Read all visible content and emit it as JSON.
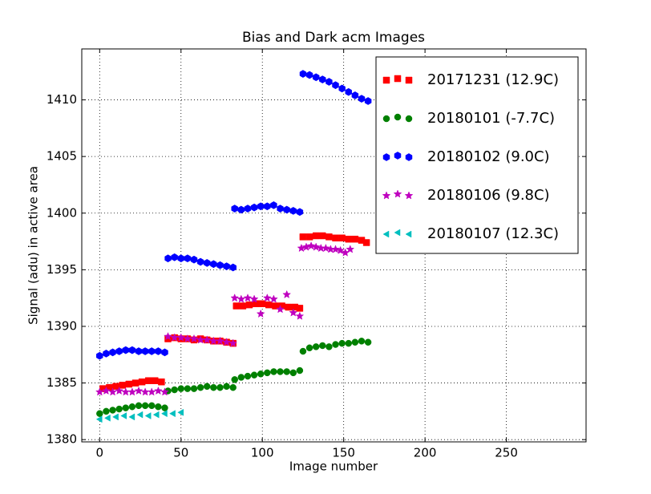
{
  "chart_data": {
    "type": "scatter",
    "title": "Bias and Dark acm Images",
    "x_label": "Image number",
    "y_label": "Signal (adu) in active area",
    "xlim": [
      -11,
      299
    ],
    "ylim": [
      1379.8,
      1414.5
    ],
    "xticks": [
      0,
      50,
      100,
      150,
      200,
      250
    ],
    "yticks": [
      1380,
      1385,
      1390,
      1395,
      1400,
      1405,
      1410
    ],
    "grid": true,
    "legend_position": "upper-right",
    "series": [
      {
        "name": "20171231 (12.9C)",
        "color": "#ff0000",
        "marker": "square",
        "x": [
          2,
          6,
          10,
          14,
          18,
          22,
          26,
          30,
          34,
          38,
          42,
          46,
          50,
          54,
          58,
          62,
          66,
          70,
          74,
          78,
          82,
          84,
          88,
          92,
          96,
          100,
          104,
          108,
          112,
          116,
          120,
          123,
          125,
          129,
          133,
          137,
          141,
          145,
          149,
          153,
          157,
          161,
          164
        ],
        "values": [
          1384.5,
          1384.6,
          1384.7,
          1384.8,
          1384.9,
          1385.0,
          1385.1,
          1385.2,
          1385.2,
          1385.1,
          1388.9,
          1389.0,
          1388.9,
          1388.9,
          1388.8,
          1388.9,
          1388.8,
          1388.7,
          1388.7,
          1388.6,
          1388.5,
          1391.8,
          1391.8,
          1391.9,
          1392.0,
          1392.0,
          1391.9,
          1391.8,
          1391.8,
          1391.7,
          1391.7,
          1391.6,
          1397.9,
          1397.9,
          1398.0,
          1398.0,
          1397.9,
          1397.8,
          1397.8,
          1397.7,
          1397.7,
          1397.6,
          1397.4
        ]
      },
      {
        "name": "20180101 (-7.7C)",
        "color": "#008000",
        "marker": "circle",
        "x": [
          0,
          4,
          8,
          12,
          16,
          20,
          24,
          28,
          32,
          36,
          40,
          42,
          46,
          50,
          54,
          58,
          62,
          66,
          70,
          74,
          78,
          82,
          83,
          87,
          91,
          95,
          99,
          103,
          107,
          111,
          115,
          119,
          123,
          125,
          129,
          133,
          137,
          141,
          145,
          149,
          153,
          157,
          161,
          165
        ],
        "values": [
          1382.3,
          1382.5,
          1382.6,
          1382.7,
          1382.8,
          1382.9,
          1383.0,
          1383.0,
          1383.0,
          1382.9,
          1382.8,
          1384.3,
          1384.4,
          1384.5,
          1384.5,
          1384.5,
          1384.6,
          1384.7,
          1384.6,
          1384.6,
          1384.7,
          1384.6,
          1385.3,
          1385.5,
          1385.6,
          1385.7,
          1385.8,
          1385.9,
          1386.0,
          1386.0,
          1386.0,
          1385.9,
          1386.1,
          1387.8,
          1388.1,
          1388.2,
          1388.3,
          1388.2,
          1388.4,
          1388.5,
          1388.5,
          1388.6,
          1388.7,
          1388.6
        ]
      },
      {
        "name": "20180102 (9.0C)",
        "color": "#0000ff",
        "marker": "hexagon",
        "x": [
          0,
          4,
          8,
          12,
          16,
          20,
          24,
          28,
          32,
          36,
          40,
          42,
          46,
          50,
          54,
          58,
          62,
          66,
          70,
          74,
          78,
          82,
          83,
          87,
          91,
          95,
          99,
          103,
          107,
          111,
          115,
          119,
          123,
          125,
          129,
          133,
          137,
          141,
          145,
          149,
          153,
          157,
          161,
          165
        ],
        "values": [
          1387.4,
          1387.6,
          1387.7,
          1387.8,
          1387.9,
          1387.9,
          1387.8,
          1387.8,
          1387.8,
          1387.8,
          1387.7,
          1396.0,
          1396.1,
          1396.0,
          1396.0,
          1395.9,
          1395.7,
          1395.6,
          1395.5,
          1395.4,
          1395.3,
          1395.2,
          1400.4,
          1400.3,
          1400.4,
          1400.5,
          1400.6,
          1400.6,
          1400.7,
          1400.4,
          1400.3,
          1400.2,
          1400.1,
          1412.3,
          1412.2,
          1412.0,
          1411.8,
          1411.6,
          1411.3,
          1411.0,
          1410.7,
          1410.4,
          1410.1,
          1409.9
        ]
      },
      {
        "name": "20180106 (9.8C)",
        "color": "#bf00bf",
        "marker": "star",
        "x": [
          0,
          4,
          8,
          12,
          16,
          20,
          24,
          28,
          32,
          36,
          40,
          42,
          46,
          50,
          54,
          58,
          62,
          66,
          70,
          74,
          78,
          82,
          83,
          87,
          91,
          95,
          99,
          103,
          107,
          111,
          115,
          119,
          123,
          124,
          127,
          130,
          133,
          136,
          139,
          142,
          145,
          148,
          151,
          154
        ],
        "values": [
          1384.2,
          1384.3,
          1384.2,
          1384.3,
          1384.2,
          1384.2,
          1384.3,
          1384.2,
          1384.2,
          1384.3,
          1384.2,
          1389.1,
          1389.0,
          1389.0,
          1388.9,
          1388.9,
          1388.8,
          1388.8,
          1388.7,
          1388.7,
          1388.6,
          1388.5,
          1392.5,
          1392.4,
          1392.5,
          1392.4,
          1391.1,
          1392.5,
          1392.4,
          1391.5,
          1392.8,
          1391.2,
          1390.9,
          1396.9,
          1397.0,
          1397.1,
          1397.0,
          1396.9,
          1396.9,
          1396.8,
          1396.8,
          1396.7,
          1396.5,
          1396.8
        ]
      },
      {
        "name": "20180107 (12.3C)",
        "color": "#00bfbf",
        "marker": "triangle-left",
        "x": [
          0,
          5,
          10,
          15,
          20,
          25,
          30,
          35,
          40,
          45,
          50
        ],
        "values": [
          1381.8,
          1381.9,
          1382.0,
          1382.1,
          1382.0,
          1382.2,
          1382.1,
          1382.2,
          1382.3,
          1382.3,
          1382.4
        ]
      }
    ]
  }
}
